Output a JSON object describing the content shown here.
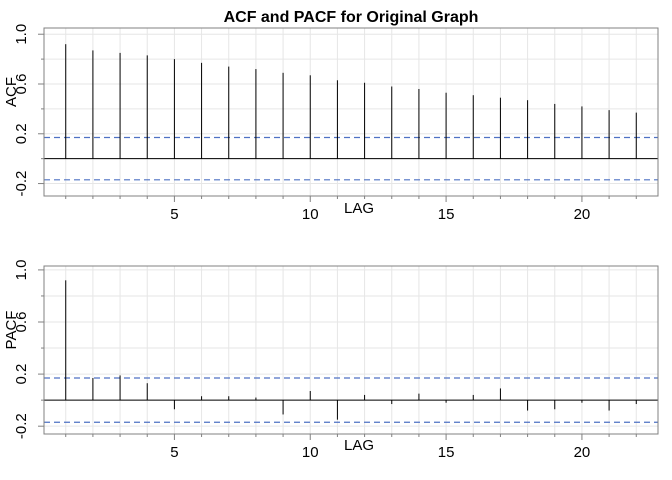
{
  "title": "ACF and PACF for Original Graph",
  "colors": {
    "grid": "#e6e6e6",
    "frame": "#808080",
    "spike": "#000000",
    "zero_line": "#000000",
    "ci_line": "#4f72c4"
  },
  "chart_data": [
    {
      "type": "bar",
      "name": "acf",
      "xlabel": "LAG",
      "ylabel": "ACF",
      "xlim": [
        0.2,
        22.8
      ],
      "ylim": [
        -0.3,
        1.05
      ],
      "xticks": [
        5,
        10,
        15,
        20
      ],
      "yticks": [
        -0.2,
        0.2,
        0.6,
        1.0
      ],
      "ytick_labels": [
        "-0.2",
        "0.2",
        "0.6",
        "1.0"
      ],
      "grid": true,
      "confidence_band": [
        0.17,
        -0.17
      ],
      "lags": [
        1,
        2,
        3,
        4,
        5,
        6,
        7,
        8,
        9,
        10,
        11,
        12,
        13,
        14,
        15,
        16,
        17,
        18,
        19,
        20,
        21,
        22
      ],
      "values": [
        0.92,
        0.87,
        0.85,
        0.83,
        0.8,
        0.77,
        0.74,
        0.72,
        0.69,
        0.67,
        0.63,
        0.61,
        0.58,
        0.56,
        0.53,
        0.51,
        0.49,
        0.47,
        0.44,
        0.42,
        0.39,
        0.37
      ]
    },
    {
      "type": "bar",
      "name": "pacf",
      "xlabel": "LAG",
      "ylabel": "PACF",
      "xlim": [
        0.2,
        22.8
      ],
      "ylim": [
        -0.26,
        1.03
      ],
      "xticks": [
        5,
        10,
        15,
        20
      ],
      "yticks": [
        -0.2,
        0.2,
        0.6,
        1.0
      ],
      "ytick_labels": [
        "-0.2",
        "0.2",
        "0.6",
        "1.0"
      ],
      "grid": true,
      "confidence_band": [
        0.17,
        -0.17
      ],
      "lags": [
        1,
        2,
        3,
        4,
        5,
        6,
        7,
        8,
        9,
        10,
        11,
        12,
        13,
        14,
        15,
        16,
        17,
        18,
        19,
        20,
        21,
        22
      ],
      "values": [
        0.92,
        0.17,
        0.19,
        0.13,
        -0.07,
        0.03,
        0.03,
        0.02,
        -0.11,
        0.07,
        -0.15,
        0.04,
        -0.03,
        0.05,
        -0.02,
        0.04,
        0.09,
        -0.08,
        -0.07,
        -0.02,
        -0.08,
        -0.03
      ]
    }
  ]
}
